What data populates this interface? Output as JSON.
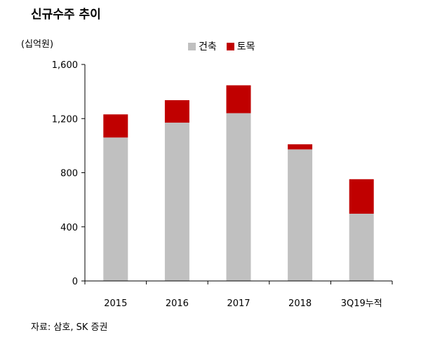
{
  "chart_data": {
    "type": "bar",
    "stacked": true,
    "title": "신규수주 추이",
    "ylabel": "(십억원)",
    "xlabel": "",
    "categories": [
      "2015",
      "2016",
      "2017",
      "2018",
      "3Q19누적"
    ],
    "series": [
      {
        "name": "건축",
        "color": "#c0c0c0",
        "values": [
          1060,
          1170,
          1240,
          972,
          497
        ]
      },
      {
        "name": "토목",
        "color": "#c00000",
        "values": [
          171,
          166,
          206,
          38,
          255
        ]
      }
    ],
    "ylim": [
      0,
      1600
    ],
    "yticks": [
      0,
      400,
      800,
      1200,
      1600
    ],
    "ytick_labels": [
      "0",
      "400",
      "800",
      "1,200",
      "1,600"
    ],
    "grid": false,
    "legend_position": "top"
  },
  "source": "자료: 삼호, SK 증권"
}
